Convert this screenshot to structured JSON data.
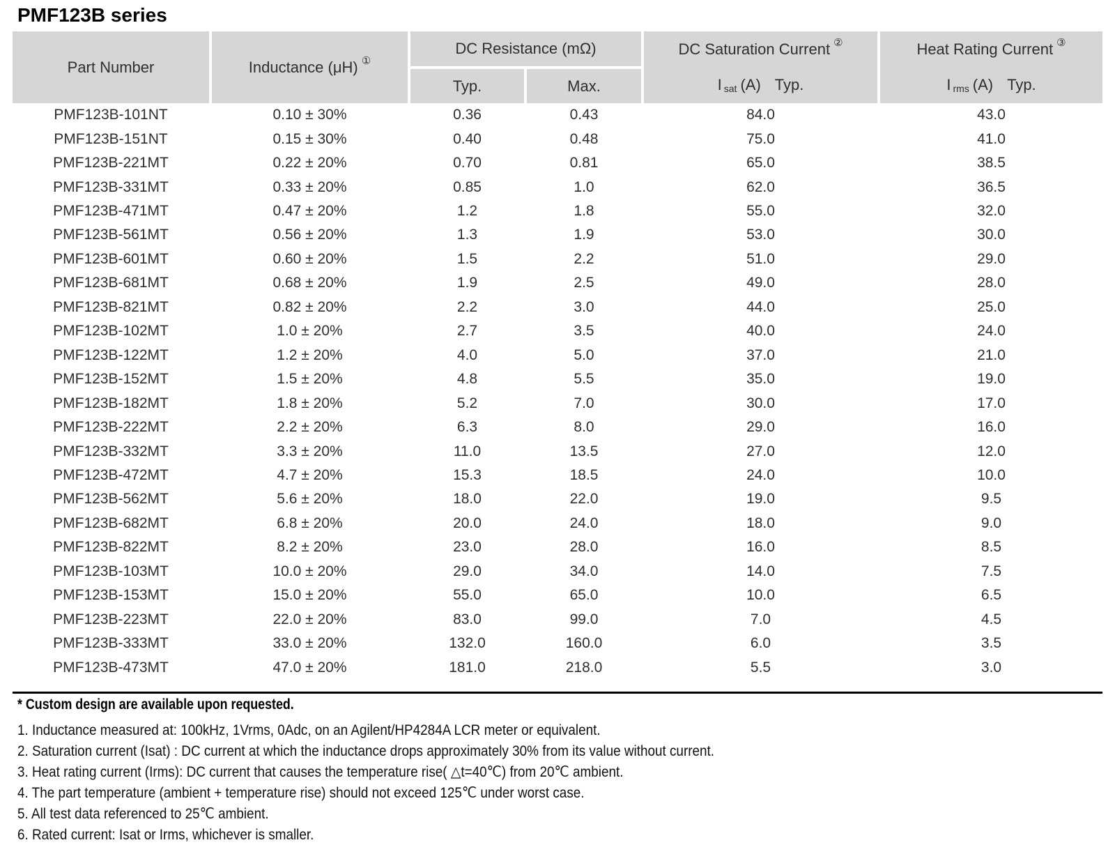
{
  "title": "PMF123B series",
  "colors": {
    "header_bg": "#d6d6d6",
    "text": "#2e2e2e",
    "rule": "#000000"
  },
  "table": {
    "header": {
      "part_number": "Part Number",
      "inductance_label": "Inductance (μH)",
      "inductance_footnote_ref": "①",
      "dc_resistance_label": "DC Resistance (mΩ)",
      "typ_label": "Typ.",
      "max_label": "Max.",
      "dc_saturation_label": "DC Saturation Current",
      "dc_saturation_footnote_ref": "②",
      "isat_symbol": "I",
      "isat_subscript": "sat",
      "isat_unit": "(A)",
      "isat_typ": "Typ.",
      "heat_rating_label": "Heat Rating Current",
      "heat_rating_footnote_ref": "③",
      "irms_symbol": "I",
      "irms_subscript": "rms",
      "irms_unit": "(A)",
      "irms_typ": "Typ."
    },
    "rows": [
      [
        "PMF123B-101NT",
        "0.10 ± 30%",
        "0.36",
        "0.43",
        "84.0",
        "43.0"
      ],
      [
        "PMF123B-151NT",
        "0.15 ± 30%",
        "0.40",
        "0.48",
        "75.0",
        "41.0"
      ],
      [
        "PMF123B-221MT",
        "0.22 ± 20%",
        "0.70",
        "0.81",
        "65.0",
        "38.5"
      ],
      [
        "PMF123B-331MT",
        "0.33 ± 20%",
        "0.85",
        "1.0",
        "62.0",
        "36.5"
      ],
      [
        "PMF123B-471MT",
        "0.47 ± 20%",
        "1.2",
        "1.8",
        "55.0",
        "32.0"
      ],
      [
        "PMF123B-561MT",
        "0.56 ± 20%",
        "1.3",
        "1.9",
        "53.0",
        "30.0"
      ],
      [
        "PMF123B-601MT",
        "0.60 ± 20%",
        "1.5",
        "2.2",
        "51.0",
        "29.0"
      ],
      [
        "PMF123B-681MT",
        "0.68 ± 20%",
        "1.9",
        "2.5",
        "49.0",
        "28.0"
      ],
      [
        "PMF123B-821MT",
        "0.82 ± 20%",
        "2.2",
        "3.0",
        "44.0",
        "25.0"
      ],
      [
        "PMF123B-102MT",
        "1.0 ± 20%",
        "2.7",
        "3.5",
        "40.0",
        "24.0"
      ],
      [
        "PMF123B-122MT",
        "1.2 ± 20%",
        "4.0",
        "5.0",
        "37.0",
        "21.0"
      ],
      [
        "PMF123B-152MT",
        "1.5 ± 20%",
        "4.8",
        "5.5",
        "35.0",
        "19.0"
      ],
      [
        "PMF123B-182MT",
        "1.8 ± 20%",
        "5.2",
        "7.0",
        "30.0",
        "17.0"
      ],
      [
        "PMF123B-222MT",
        "2.2 ± 20%",
        "6.3",
        "8.0",
        "29.0",
        "16.0"
      ],
      [
        "PMF123B-332MT",
        "3.3 ± 20%",
        "11.0",
        "13.5",
        "27.0",
        "12.0"
      ],
      [
        "PMF123B-472MT",
        "4.7 ± 20%",
        "15.3",
        "18.5",
        "24.0",
        "10.0"
      ],
      [
        "PMF123B-562MT",
        "5.6 ± 20%",
        "18.0",
        "22.0",
        "19.0",
        "9.5"
      ],
      [
        "PMF123B-682MT",
        "6.8 ± 20%",
        "20.0",
        "24.0",
        "18.0",
        "9.0"
      ],
      [
        "PMF123B-822MT",
        "8.2 ± 20%",
        "23.0",
        "28.0",
        "16.0",
        "8.5"
      ],
      [
        "PMF123B-103MT",
        "10.0 ± 20%",
        "29.0",
        "34.0",
        "14.0",
        "7.5"
      ],
      [
        "PMF123B-153MT",
        "15.0 ± 20%",
        "55.0",
        "65.0",
        "10.0",
        "6.5"
      ],
      [
        "PMF123B-223MT",
        "22.0 ± 20%",
        "83.0",
        "99.0",
        "7.0",
        "4.5"
      ],
      [
        "PMF123B-333MT",
        "33.0 ± 20%",
        "132.0",
        "160.0",
        "6.0",
        "3.5"
      ],
      [
        "PMF123B-473MT",
        "47.0 ± 20%",
        "181.0",
        "218.0",
        "5.5",
        "3.0"
      ]
    ]
  },
  "footnotes": {
    "star": "* Custom design are available upon requested.",
    "items": [
      "1. Inductance measured at: 100kHz, 1Vrms, 0Adc, on an Agilent/HP4284A LCR meter or equivalent.",
      "2. Saturation current (Isat) : DC current at which the inductance drops approximately 30% from its value without current.",
      "3. Heat rating current (Irms): DC current that causes the temperature rise( △t=40℃) from 20℃ ambient.",
      "4. The part temperature (ambient + temperature rise) should not exceed 125℃ under worst case.",
      "5. All test data referenced to 25℃ ambient.",
      "6. Rated current: Isat or Irms, whichever is smaller."
    ]
  }
}
